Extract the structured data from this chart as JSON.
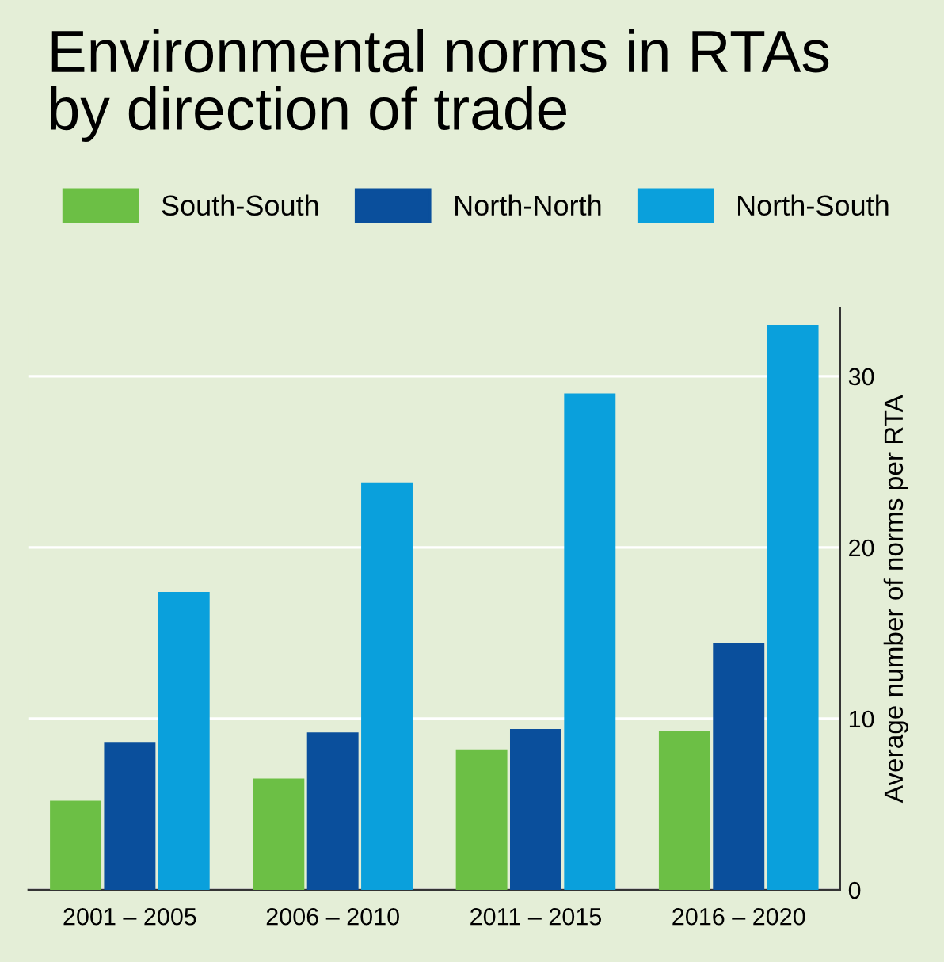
{
  "chart_data": {
    "type": "bar",
    "title": "Environmental norms in RTAs\nby direction of trade",
    "categories": [
      "2001 – 2005",
      "2006 – 2010",
      "2011 – 2015",
      "2016 – 2020"
    ],
    "series": [
      {
        "name": "South-South",
        "color": "#6cbf45",
        "values": [
          5.2,
          6.5,
          8.2,
          9.3
        ]
      },
      {
        "name": "North-North",
        "color": "#0a4f9c",
        "values": [
          8.6,
          9.2,
          9.4,
          14.4
        ]
      },
      {
        "name": "North-South",
        "color": "#0aa0dc",
        "values": [
          17.4,
          23.8,
          29.0,
          33.0
        ]
      }
    ],
    "ylabel": "Average number of norms per RTA",
    "ylim": [
      0,
      34
    ],
    "yticks": [
      0,
      10,
      20,
      30
    ],
    "grid": "y",
    "legend": "top"
  }
}
